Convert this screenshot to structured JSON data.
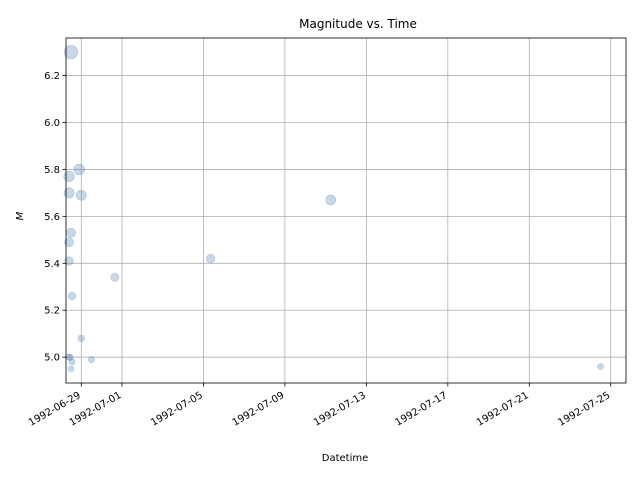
{
  "chart_data": {
    "type": "scatter",
    "title": "Magnitude vs. Time",
    "xlabel": "Datetime",
    "ylabel": "M",
    "grid": true,
    "legend": "none",
    "x_ticks": [
      "1992-06-29",
      "1992-07-01",
      "1992-07-05",
      "1992-07-09",
      "1992-07-13",
      "1992-07-17",
      "1992-07-21",
      "1992-07-25"
    ],
    "y_ticks": [
      "5.0",
      "5.2",
      "5.4",
      "5.6",
      "5.8",
      "6.0",
      "6.2"
    ],
    "xlim": [
      "1992-06-28 06:00",
      "1992-07-25 18:00"
    ],
    "ylim": [
      4.89,
      6.36
    ],
    "marker_color": "#4c7fb1",
    "points": [
      {
        "x": "1992-06-28 11:57",
        "y": 6.3
      },
      {
        "x": "1992-06-28 09:36",
        "y": 5.77
      },
      {
        "x": "1992-06-28 09:36",
        "y": 5.7
      },
      {
        "x": "1992-06-28 21:36",
        "y": 5.8
      },
      {
        "x": "1992-06-29 00:00",
        "y": 5.69
      },
      {
        "x": "1992-06-28 11:57",
        "y": 5.53
      },
      {
        "x": "1992-06-28 09:36",
        "y": 5.49
      },
      {
        "x": "1992-06-28 09:36",
        "y": 5.41
      },
      {
        "x": "1992-06-28 13:12",
        "y": 5.26
      },
      {
        "x": "1992-06-29 00:00",
        "y": 5.08
      },
      {
        "x": "1992-06-28 09:36",
        "y": 5.0
      },
      {
        "x": "1992-06-28 10:48",
        "y": 5.0
      },
      {
        "x": "1992-06-28 13:12",
        "y": 4.98
      },
      {
        "x": "1992-06-28 11:57",
        "y": 4.95
      },
      {
        "x": "1992-06-29 12:00",
        "y": 4.99
      },
      {
        "x": "1992-06-30 15:36",
        "y": 5.34
      },
      {
        "x": "1992-07-05 08:24",
        "y": 5.42
      },
      {
        "x": "1992-07-11 06:00",
        "y": 5.67
      },
      {
        "x": "1992-07-24 11:59",
        "y": 4.96
      }
    ]
  }
}
